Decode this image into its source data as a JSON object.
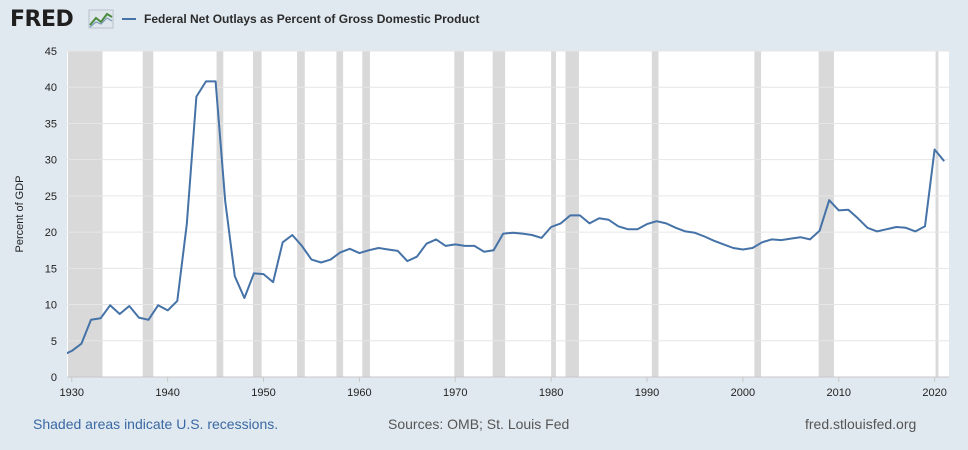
{
  "header": {
    "logo_text": "FRED",
    "logo_icon": "trend-chart-icon",
    "legend_label": "Federal Net Outlays as Percent of Gross Domestic Product"
  },
  "colors": {
    "series": "#4572a7",
    "recession": "#d9d9d9",
    "grid": "#e6e6e6",
    "background": "#e1e9f0",
    "plot_bg": "#ffffff",
    "footer_link": "#3a68a3"
  },
  "footer": {
    "recession_note": "Shaded areas indicate U.S. recessions.",
    "sources": "Sources: OMB; St. Louis Fed",
    "site": "fred.stlouisfed.org"
  },
  "chart_data": {
    "type": "line",
    "title": "",
    "xlabel": "",
    "ylabel": "Percent of GDP",
    "xlim": [
      1929.5,
      2021.5
    ],
    "ylim": [
      0,
      45
    ],
    "yticks": [
      0,
      5,
      10,
      15,
      20,
      25,
      30,
      35,
      40,
      45
    ],
    "xticks": [
      1930,
      1940,
      1950,
      1960,
      1970,
      1980,
      1990,
      2000,
      2010,
      2020
    ],
    "grid": "horizontal",
    "recessions": [
      [
        1929.6,
        1933.2
      ],
      [
        1937.4,
        1938.5
      ],
      [
        1945.1,
        1945.8
      ],
      [
        1948.9,
        1949.8
      ],
      [
        1953.5,
        1954.3
      ],
      [
        1957.6,
        1958.3
      ],
      [
        1960.3,
        1961.1
      ],
      [
        1969.9,
        1970.9
      ],
      [
        1973.9,
        1975.2
      ],
      [
        1980.0,
        1980.5
      ],
      [
        1981.5,
        1982.9
      ],
      [
        1990.5,
        1991.2
      ],
      [
        2001.2,
        2001.9
      ],
      [
        2007.9,
        2009.5
      ],
      [
        2020.1,
        2020.4
      ]
    ],
    "series": [
      {
        "name": "Federal Net Outlays as Percent of Gross Domestic Product",
        "x": [
          1929,
          1930,
          1931,
          1932,
          1933,
          1934,
          1935,
          1936,
          1937,
          1938,
          1939,
          1940,
          1941,
          1942,
          1943,
          1944,
          1945,
          1946,
          1947,
          1948,
          1949,
          1950,
          1951,
          1952,
          1953,
          1954,
          1955,
          1956,
          1957,
          1958,
          1959,
          1960,
          1961,
          1962,
          1963,
          1964,
          1965,
          1966,
          1967,
          1968,
          1969,
          1970,
          1971,
          1972,
          1973,
          1974,
          1975,
          1976,
          1977,
          1978,
          1979,
          1980,
          1981,
          1982,
          1983,
          1984,
          1985,
          1986,
          1987,
          1988,
          1989,
          1990,
          1991,
          1992,
          1993,
          1994,
          1995,
          1996,
          1997,
          1998,
          1999,
          2000,
          2001,
          2002,
          2003,
          2004,
          2005,
          2006,
          2007,
          2008,
          2009,
          2010,
          2011,
          2012,
          2013,
          2014,
          2015,
          2016,
          2017,
          2018,
          2019,
          2020,
          2021
        ],
        "values": [
          3.0,
          3.6,
          4.6,
          7.9,
          8.1,
          9.9,
          8.7,
          9.8,
          8.2,
          7.9,
          9.9,
          9.2,
          10.5,
          21.1,
          38.7,
          40.8,
          40.8,
          24.3,
          13.9,
          10.9,
          14.3,
          14.2,
          13.1,
          18.6,
          19.6,
          18.1,
          16.2,
          15.8,
          16.2,
          17.2,
          17.7,
          17.1,
          17.5,
          17.8,
          17.6,
          17.4,
          16.0,
          16.6,
          18.4,
          19.0,
          18.1,
          18.3,
          18.1,
          18.1,
          17.3,
          17.5,
          19.8,
          19.9,
          19.8,
          19.6,
          19.2,
          20.7,
          21.2,
          22.3,
          22.3,
          21.2,
          21.9,
          21.7,
          20.8,
          20.4,
          20.4,
          21.1,
          21.5,
          21.2,
          20.6,
          20.1,
          19.9,
          19.4,
          18.8,
          18.3,
          17.8,
          17.6,
          17.8,
          18.6,
          19.0,
          18.9,
          19.1,
          19.3,
          19.0,
          20.2,
          24.4,
          23.0,
          23.1,
          21.9,
          20.6,
          20.1,
          20.4,
          20.7,
          20.6,
          20.1,
          20.8,
          31.4,
          29.8
        ]
      }
    ]
  }
}
